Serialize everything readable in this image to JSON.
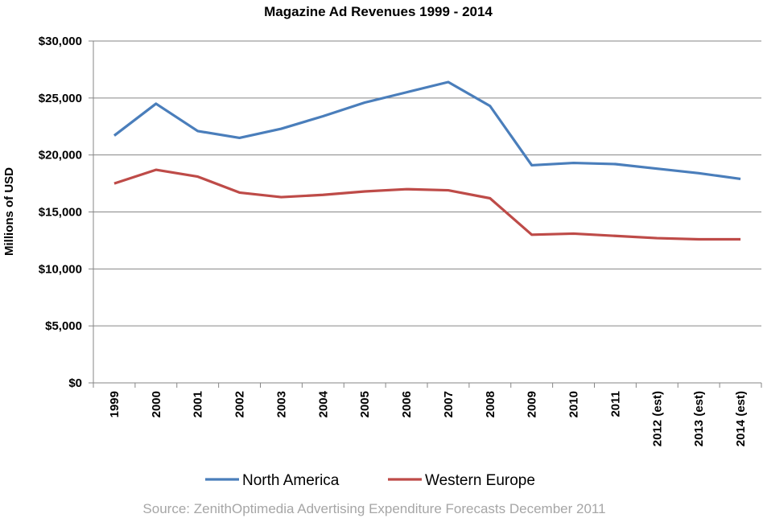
{
  "chart_data": {
    "type": "line",
    "title": "Magazine Ad Revenues 1999 - 2014",
    "xlabel": "",
    "ylabel": "Millions of  USD",
    "ylim": [
      0,
      30000
    ],
    "yticks": [
      0,
      5000,
      10000,
      15000,
      20000,
      25000,
      30000
    ],
    "ytick_labels": [
      "$0",
      "$5,000",
      "$10,000",
      "$15,000",
      "$20,000",
      "$25,000",
      "$30,000"
    ],
    "grid": true,
    "legend_placement": "bottom",
    "categories": [
      "1999",
      "2000",
      "2001",
      "2002",
      "2003",
      "2004",
      "2005",
      "2006",
      "2007",
      "2008",
      "2009",
      "2010",
      "2011",
      "2012 (est)",
      "2013 (est)",
      "2014 (est)"
    ],
    "series": [
      {
        "name": "North America",
        "color": "#4a7ebb",
        "values": [
          21700,
          24500,
          22100,
          21500,
          22300,
          23400,
          24600,
          25500,
          26400,
          24300,
          19100,
          19300,
          19200,
          18800,
          18400,
          17900
        ]
      },
      {
        "name": "Western Europe",
        "color": "#be4b48",
        "values": [
          17500,
          18700,
          18100,
          16700,
          16300,
          16500,
          16800,
          17000,
          16900,
          16200,
          13000,
          13100,
          12900,
          12700,
          12600,
          12600
        ]
      }
    ],
    "source": "Source: ZenithOptimedia Advertising Expenditure Forecasts December  2011"
  }
}
